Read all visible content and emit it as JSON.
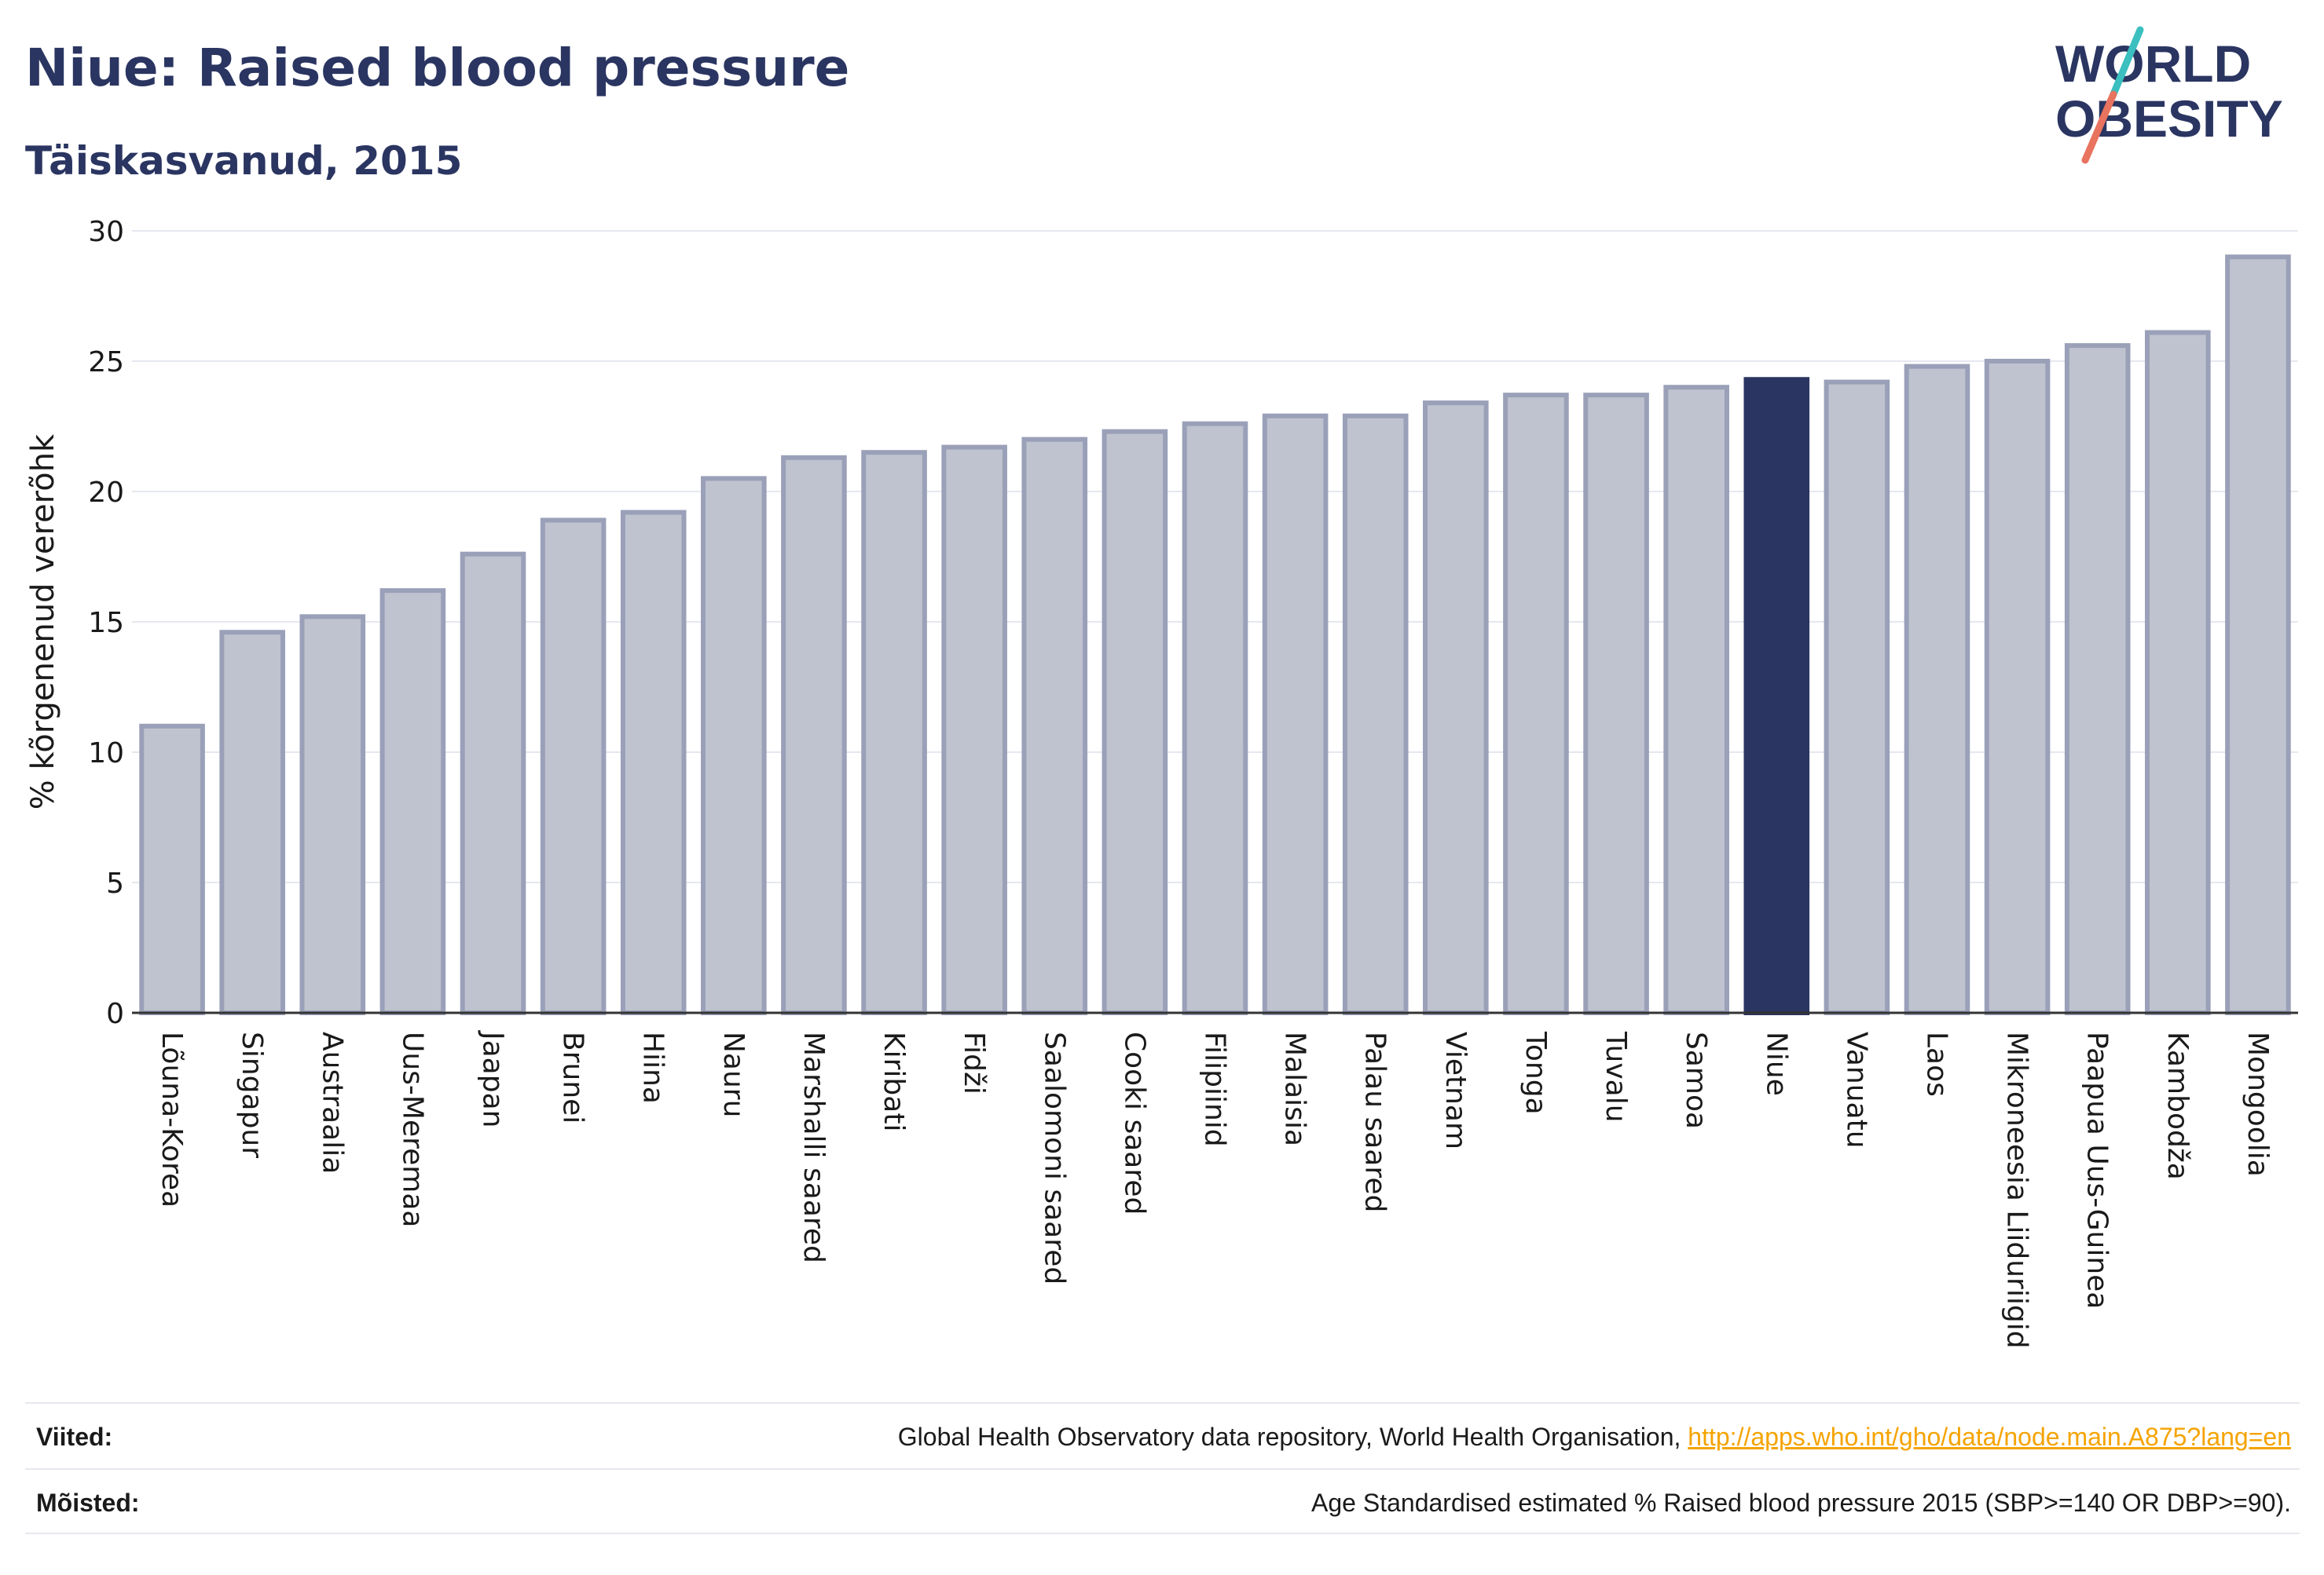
{
  "header": {
    "title": "Niue: Raised blood pressure",
    "subtitle": "Täiskasvanud, 2015"
  },
  "logo": {
    "line1": "WORLD",
    "line2": "OBESITY",
    "colors": {
      "text": "#2a3561",
      "slash_teal": "#3bbfbf",
      "slash_coral": "#e8735f"
    }
  },
  "footer": {
    "sources_label": "Viited:",
    "sources_text": "Global Health Observatory data repository, World Health Organisation, ",
    "sources_link": "http://apps.who.int/gho/data/node.main.A875?lang=en",
    "definitions_label": "Mõisted:",
    "definitions_text": "Age Standardised estimated % Raised blood pressure 2015 (SBP>=140 OR DBP>=90)."
  },
  "chart_data": {
    "type": "bar",
    "title": "Niue: Raised blood pressure",
    "subtitle": "Täiskasvanud, 2015",
    "xlabel": "",
    "ylabel": "% kõrgenenud vererõhk",
    "ylim": [
      0,
      30
    ],
    "yticks": [
      0,
      5,
      10,
      15,
      20,
      25,
      30
    ],
    "grid": true,
    "highlight": "Niue",
    "colors": {
      "bar": "#bfc3cf",
      "bar_border": "#9aa0b8",
      "highlight": "#2a3561",
      "grid": "#e6e8ef",
      "axis": "#333333"
    },
    "categories": [
      "Lõuna-Korea",
      "Singapur",
      "Austraalia",
      "Uus-Meremaa",
      "Jaapan",
      "Brunei",
      "Hiina",
      "Nauru",
      "Marshalli saared",
      "Kiribati",
      "Fidži",
      "Saalomoni saared",
      "Cooki saared",
      "Filipiinid",
      "Malaisia",
      "Palau saared",
      "Vietnam",
      "Tonga",
      "Tuvalu",
      "Samoa",
      "Niue",
      "Vanuatu",
      "Laos",
      "Mikroneesia Liiduriigid",
      "Paapua Uus-Guinea",
      "Kambodža",
      "Mongoolia"
    ],
    "values": [
      11.0,
      14.6,
      15.2,
      16.2,
      17.6,
      18.9,
      19.2,
      20.5,
      21.3,
      21.5,
      21.7,
      22.0,
      22.3,
      22.6,
      22.9,
      22.9,
      23.4,
      23.7,
      23.7,
      24.0,
      24.3,
      24.2,
      24.8,
      25.0,
      25.6,
      26.1,
      29.0
    ]
  }
}
